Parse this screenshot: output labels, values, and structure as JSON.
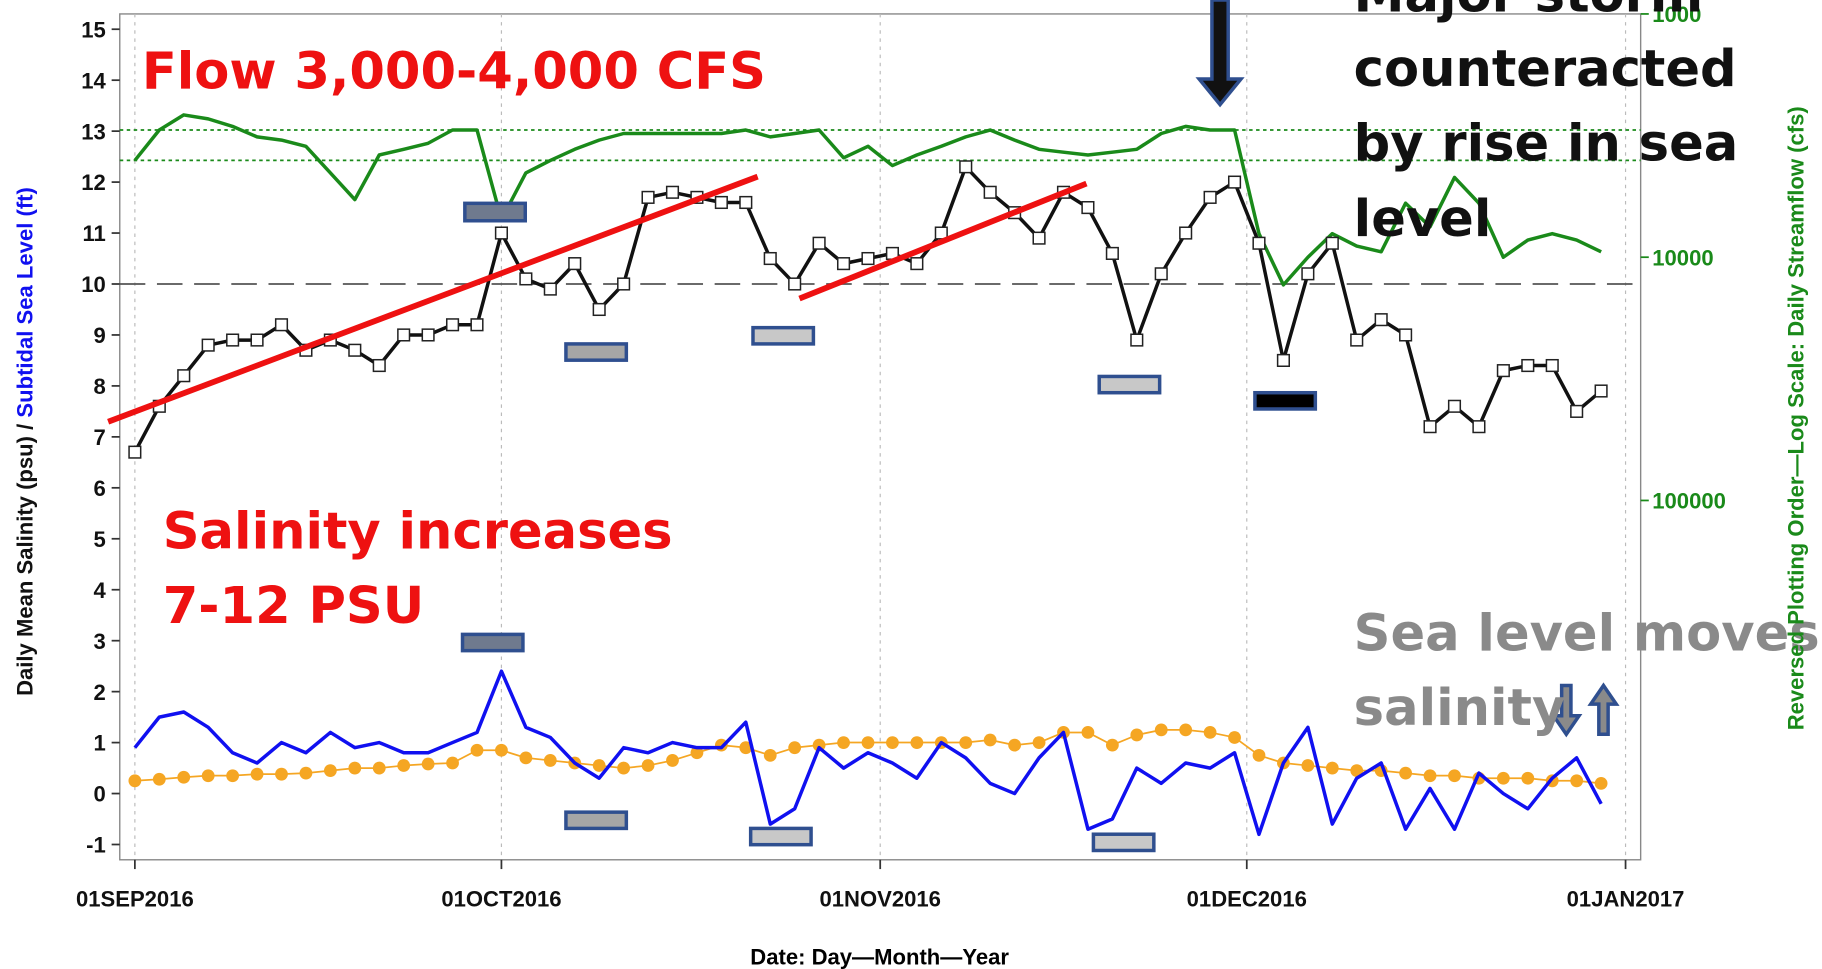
{
  "chart_data": {
    "type": "line",
    "xlabel": "Date: Day—Month—Year",
    "ylabel": "Daily Mean Salinity (psu) /",
    "ylabel_2": "Subtidal Sea Level (ft)",
    "y2label": "Reversed Plotting Order—Log Scale: Daily Streamflow (cfs)",
    "x": [
      "2016-09-01",
      "2016-09-03",
      "2016-09-05",
      "2016-09-07",
      "2016-09-09",
      "2016-09-11",
      "2016-09-13",
      "2016-09-15",
      "2016-09-17",
      "2016-09-19",
      "2016-09-21",
      "2016-09-23",
      "2016-09-25",
      "2016-09-27",
      "2016-09-29",
      "2016-10-01",
      "2016-10-03",
      "2016-10-05",
      "2016-10-07",
      "2016-10-09",
      "2016-10-11",
      "2016-10-13",
      "2016-10-15",
      "2016-10-17",
      "2016-10-19",
      "2016-10-21",
      "2016-10-23",
      "2016-10-25",
      "2016-10-27",
      "2016-10-29",
      "2016-10-31",
      "2016-11-02",
      "2016-11-04",
      "2016-11-06",
      "2016-11-08",
      "2016-11-10",
      "2016-11-12",
      "2016-11-14",
      "2016-11-16",
      "2016-11-18",
      "2016-11-20",
      "2016-11-22",
      "2016-11-24",
      "2016-11-26",
      "2016-11-28",
      "2016-11-30",
      "2016-12-02",
      "2016-12-04",
      "2016-12-06",
      "2016-12-08",
      "2016-12-10",
      "2016-12-12",
      "2016-12-14",
      "2016-12-16",
      "2016-12-18",
      "2016-12-20",
      "2016-12-22",
      "2016-12-24",
      "2016-12-26",
      "2016-12-28",
      "2016-12-30"
    ],
    "xlim": [
      "2016-09-01",
      "2017-01-01"
    ],
    "xticks": [
      {
        "value": "2016-09-01",
        "label": "01SEP2016"
      },
      {
        "value": "2016-10-01",
        "label": "01OCT2016"
      },
      {
        "value": "2016-11-01",
        "label": "01NOV2016"
      },
      {
        "value": "2016-12-01",
        "label": "01DEC2016"
      },
      {
        "value": "2017-01-01",
        "label": "01JAN2017"
      }
    ],
    "ylim": [
      -1.3,
      15.3
    ],
    "yticks": [
      -1,
      0,
      1,
      2,
      3,
      4,
      5,
      6,
      7,
      8,
      9,
      10,
      11,
      12,
      13,
      14,
      15
    ],
    "y2lim": [
      1000,
      3000000
    ],
    "y2ticks": [
      1000,
      10000,
      100000
    ],
    "y2_log": true,
    "y2_reversed": true,
    "y2_color": "#1a8a1a",
    "x_grid": true,
    "reference_lines": [
      {
        "value": 10,
        "axis": "y",
        "color": "#555555",
        "style": "dashed"
      },
      {
        "value": 3000,
        "axis": "y2",
        "color": "#1a8a1a",
        "style": "dotted"
      },
      {
        "value": 4000,
        "axis": "y2",
        "color": "#1a8a1a",
        "style": "dotted"
      }
    ],
    "series": [
      {
        "color": "#f5a623",
        "marker": "circle",
        "axis": "y",
        "values": [
          0.25,
          0.28,
          0.32,
          0.35,
          0.35,
          0.38,
          0.38,
          0.4,
          0.45,
          0.5,
          0.5,
          0.55,
          0.58,
          0.6,
          0.85,
          0.85,
          0.7,
          0.65,
          0.6,
          0.55,
          0.5,
          0.55,
          0.65,
          0.8,
          0.95,
          0.9,
          0.75,
          0.9,
          0.95,
          1.0,
          1.0,
          1.0,
          1.0,
          1.0,
          1.0,
          1.05,
          0.95,
          1.0,
          1.2,
          1.2,
          0.95,
          1.15,
          1.25,
          1.25,
          1.2,
          1.1,
          0.75,
          0.6,
          0.55,
          0.5,
          0.45,
          0.45,
          0.4,
          0.35,
          0.35,
          0.3,
          0.3,
          0.3,
          0.25,
          0.25,
          0.2
        ]
      },
      {
        "color": "#1010f0",
        "marker": "none",
        "axis": "y",
        "values": [
          0.9,
          1.5,
          1.6,
          1.3,
          0.8,
          0.6,
          1.0,
          0.8,
          1.2,
          0.9,
          1.0,
          0.8,
          0.8,
          1.0,
          1.2,
          2.4,
          1.3,
          1.1,
          0.6,
          0.3,
          0.9,
          0.8,
          1.0,
          0.9,
          0.9,
          1.4,
          -0.6,
          -0.3,
          0.9,
          0.5,
          0.8,
          0.6,
          0.3,
          1.0,
          0.7,
          0.2,
          0.0,
          0.7,
          1.2,
          -0.7,
          -0.5,
          0.5,
          0.2,
          0.6,
          0.5,
          0.8,
          -0.8,
          0.6,
          1.3,
          -0.6,
          0.3,
          0.6,
          -0.7,
          0.1,
          -0.7,
          0.4,
          0.0,
          -0.3,
          0.3,
          0.7,
          -0.2
        ]
      },
      {
        "color": "#1a8a1a",
        "marker": "none",
        "axis": "y2",
        "values": [
          4000,
          3000,
          2600,
          2700,
          2900,
          3200,
          3300,
          3500,
          4500,
          5800,
          3800,
          3600,
          3400,
          3000,
          3000,
          7000,
          4500,
          4000,
          3600,
          3300,
          3100,
          3100,
          3100,
          3100,
          3100,
          3000,
          3200,
          3100,
          3000,
          3900,
          3500,
          4200,
          3800,
          3500,
          3200,
          3000,
          3300,
          3600,
          3700,
          3800,
          3700,
          3600,
          3100,
          2900,
          3000,
          3000,
          8000,
          13000,
          10000,
          8000,
          9000,
          9500,
          6000,
          7500,
          4700,
          6000,
          10000,
          8500,
          8000,
          8500,
          9500
        ]
      },
      {
        "color": "#111111",
        "marker": "square",
        "axis": "y",
        "values": [
          6.7,
          7.6,
          8.2,
          8.8,
          8.9,
          8.9,
          9.2,
          8.7,
          8.9,
          8.7,
          8.4,
          9.0,
          9.0,
          9.2,
          9.2,
          11.0,
          10.1,
          9.9,
          10.4,
          9.5,
          10.0,
          11.7,
          11.8,
          11.7,
          11.6,
          11.6,
          10.5,
          10.0,
          10.8,
          10.4,
          10.5,
          10.6,
          10.4,
          11.0,
          12.3,
          11.8,
          11.4,
          10.9,
          11.8,
          11.5,
          10.6,
          8.9,
          10.2,
          11.0,
          11.7,
          12.0,
          10.8,
          8.5,
          10.2,
          10.8,
          8.9,
          9.3,
          9.0,
          7.2,
          7.6,
          7.2,
          8.3,
          8.4,
          8.4,
          7.5,
          7.9
        ]
      }
    ],
    "annotations": {
      "flow": "Flow  3,000-4,000 CFS",
      "salinity": [
        "Salinity increases",
        "7-12 PSU"
      ],
      "storm": [
        "Major storm",
        "counteracted",
        "by rise in sea",
        "level"
      ],
      "sea_level": [
        "Sea level moves",
        "salinity"
      ]
    }
  }
}
